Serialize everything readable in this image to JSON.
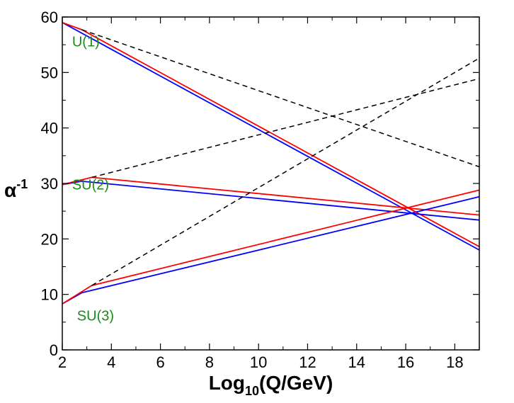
{
  "chart_data": {
    "type": "line",
    "xlim": [
      2,
      19
    ],
    "ylim": [
      0,
      60
    ],
    "xticks": [
      2,
      4,
      6,
      8,
      10,
      12,
      14,
      16,
      18
    ],
    "yticks": [
      0,
      10,
      20,
      30,
      40,
      50,
      60
    ],
    "xlabel_main": "Log",
    "xlabel_sub": "10",
    "xlabel_rest": "(Q/GeV)",
    "ylabel_main": "α",
    "ylabel_sup": "-1",
    "annotations": [
      {
        "text": "U(1)",
        "x": 2.4,
        "y": 54.7
      },
      {
        "text": "SU(2)",
        "x": 2.4,
        "y": 28.9
      },
      {
        "text": "SU(3)",
        "x": 2.6,
        "y": 5.3
      }
    ],
    "colors": {
      "red": "#ff0000",
      "blue": "#0000ff",
      "dashed": "#000000",
      "annotation": "#1a8a1a"
    },
    "series": [
      {
        "name": "U(1) blue",
        "color": "#0000ff",
        "style": "solid",
        "points": [
          [
            2,
            59.0
          ],
          [
            19,
            18.0
          ]
        ]
      },
      {
        "name": "U(1) red",
        "color": "#ff0000",
        "style": "solid",
        "points": [
          [
            2,
            59.0
          ],
          [
            2.8,
            57.7
          ],
          [
            19,
            18.6
          ]
        ]
      },
      {
        "name": "U(1) dashed",
        "color": "#000000",
        "style": "dashed",
        "points": [
          [
            2.8,
            57.7
          ],
          [
            19,
            33.0
          ]
        ]
      },
      {
        "name": "SU(2) blue",
        "color": "#0000ff",
        "style": "solid",
        "points": [
          [
            2,
            29.8
          ],
          [
            2.8,
            30.4
          ],
          [
            19,
            23.4
          ]
        ]
      },
      {
        "name": "SU(2) red",
        "color": "#ff0000",
        "style": "solid",
        "points": [
          [
            2,
            29.8
          ],
          [
            3.2,
            31.1
          ],
          [
            19,
            24.3
          ]
        ]
      },
      {
        "name": "SU(2) dashed",
        "color": "#000000",
        "style": "dashed",
        "points": [
          [
            3.2,
            31.1
          ],
          [
            19,
            48.9
          ]
        ]
      },
      {
        "name": "SU(3) blue",
        "color": "#0000ff",
        "style": "solid",
        "points": [
          [
            2,
            8.3
          ],
          [
            2.8,
            10.3
          ],
          [
            19,
            27.6
          ]
        ]
      },
      {
        "name": "SU(3) red",
        "color": "#ff0000",
        "style": "solid",
        "points": [
          [
            2,
            8.3
          ],
          [
            3.2,
            11.6
          ],
          [
            19,
            28.8
          ]
        ]
      },
      {
        "name": "SU(3) dashed",
        "color": "#000000",
        "style": "dashed",
        "points": [
          [
            3.2,
            11.6
          ],
          [
            19,
            52.6
          ]
        ]
      }
    ]
  }
}
